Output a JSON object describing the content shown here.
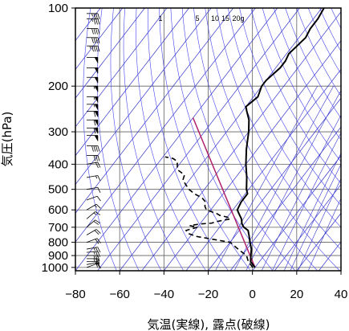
{
  "chart_data": {
    "type": "skew-t sounding",
    "xlabel": "気温(実線), 露点(破線)",
    "ylabel": "気圧(hPa)",
    "xlim": [
      -80,
      40
    ],
    "ylim": [
      1030,
      100
    ],
    "y_scale": "log",
    "x_ticks": [
      -80,
      -60,
      -40,
      -20,
      0,
      20,
      40
    ],
    "y_ticks": [
      100,
      200,
      300,
      400,
      500,
      600,
      700,
      800,
      900,
      1000
    ],
    "mixing_ratio_labels": [
      "1",
      "5",
      "10",
      "15",
      "20g"
    ],
    "grid": true,
    "temperature": [
      {
        "p": 1000,
        "t": 0
      },
      {
        "p": 975,
        "t": -2
      },
      {
        "p": 950,
        "t": -4
      },
      {
        "p": 925,
        "t": -5
      },
      {
        "p": 900,
        "t": -6
      },
      {
        "p": 875,
        "t": -7
      },
      {
        "p": 850,
        "t": -8
      },
      {
        "p": 800,
        "t": -11
      },
      {
        "p": 750,
        "t": -14
      },
      {
        "p": 720,
        "t": -16
      },
      {
        "p": 700,
        "t": -19
      },
      {
        "p": 680,
        "t": -21
      },
      {
        "p": 650,
        "t": -23
      },
      {
        "p": 620,
        "t": -26
      },
      {
        "p": 600,
        "t": -28
      },
      {
        "p": 560,
        "t": -29
      },
      {
        "p": 520,
        "t": -29
      },
      {
        "p": 500,
        "t": -31
      },
      {
        "p": 450,
        "t": -35
      },
      {
        "p": 400,
        "t": -40
      },
      {
        "p": 350,
        "t": -45
      },
      {
        "p": 300,
        "t": -50
      },
      {
        "p": 270,
        "t": -54
      },
      {
        "p": 250,
        "t": -58
      },
      {
        "p": 240,
        "t": -60
      },
      {
        "p": 220,
        "t": -58
      },
      {
        "p": 200,
        "t": -60
      },
      {
        "p": 190,
        "t": -60
      },
      {
        "p": 180,
        "t": -59
      },
      {
        "p": 170,
        "t": -58
      },
      {
        "p": 160,
        "t": -58
      },
      {
        "p": 150,
        "t": -59
      },
      {
        "p": 140,
        "t": -58
      },
      {
        "p": 130,
        "t": -57
      },
      {
        "p": 120,
        "t": -58
      },
      {
        "p": 110,
        "t": -58
      },
      {
        "p": 100,
        "t": -59
      }
    ],
    "dewpoint": [
      {
        "p": 1000,
        "t": -1
      },
      {
        "p": 950,
        "t": -5
      },
      {
        "p": 900,
        "t": -8
      },
      {
        "p": 850,
        "t": -14
      },
      {
        "p": 800,
        "t": -20
      },
      {
        "p": 760,
        "t": -37
      },
      {
        "p": 740,
        "t": -42
      },
      {
        "p": 720,
        "t": -44
      },
      {
        "p": 700,
        "t": -40
      },
      {
        "p": 690,
        "t": -44
      },
      {
        "p": 680,
        "t": -40
      },
      {
        "p": 675,
        "t": -35
      },
      {
        "p": 665,
        "t": -33
      },
      {
        "p": 650,
        "t": -28
      },
      {
        "p": 640,
        "t": -30
      },
      {
        "p": 630,
        "t": -34
      },
      {
        "p": 620,
        "t": -36
      },
      {
        "p": 600,
        "t": -42
      },
      {
        "p": 580,
        "t": -44
      },
      {
        "p": 560,
        "t": -45
      },
      {
        "p": 540,
        "t": -48
      },
      {
        "p": 520,
        "t": -53
      },
      {
        "p": 500,
        "t": -57
      },
      {
        "p": 480,
        "t": -60
      },
      {
        "p": 460,
        "t": -63
      },
      {
        "p": 440,
        "t": -64
      },
      {
        "p": 420,
        "t": -69
      },
      {
        "p": 400,
        "t": -71
      },
      {
        "p": 390,
        "t": -72
      },
      {
        "p": 380,
        "t": -75
      },
      {
        "p": 375,
        "t": -79
      }
    ],
    "parcel": [
      {
        "p": 1000,
        "t": 0
      },
      {
        "p": 265,
        "t": -80
      }
    ],
    "wind_barbs": [
      {
        "p": 1000,
        "dir": 250,
        "spd": 10
      },
      {
        "p": 975,
        "dir": 260,
        "spd": 15
      },
      {
        "p": 950,
        "dir": 270,
        "spd": 20
      },
      {
        "p": 925,
        "dir": 270,
        "spd": 25
      },
      {
        "p": 900,
        "dir": 270,
        "spd": 25
      },
      {
        "p": 875,
        "dir": 265,
        "spd": 25
      },
      {
        "p": 850,
        "dir": 260,
        "spd": 25
      },
      {
        "p": 800,
        "dir": 250,
        "spd": 20
      },
      {
        "p": 750,
        "dir": 240,
        "spd": 20
      },
      {
        "p": 700,
        "dir": 230,
        "spd": 20
      },
      {
        "p": 650,
        "dir": 230,
        "spd": 15
      },
      {
        "p": 600,
        "dir": 240,
        "spd": 15
      },
      {
        "p": 550,
        "dir": 250,
        "spd": 10
      },
      {
        "p": 500,
        "dir": 260,
        "spd": 10
      },
      {
        "p": 450,
        "dir": 260,
        "spd": 15
      },
      {
        "p": 400,
        "dir": 260,
        "spd": 20
      },
      {
        "p": 370,
        "dir": 270,
        "spd": 30
      },
      {
        "p": 340,
        "dir": 270,
        "spd": 40
      },
      {
        "p": 310,
        "dir": 270,
        "spd": 50
      },
      {
        "p": 290,
        "dir": 270,
        "spd": 60
      },
      {
        "p": 270,
        "dir": 270,
        "spd": 60
      },
      {
        "p": 250,
        "dir": 270,
        "spd": 60
      },
      {
        "p": 235,
        "dir": 270,
        "spd": 55
      },
      {
        "p": 220,
        "dir": 270,
        "spd": 55
      },
      {
        "p": 200,
        "dir": 270,
        "spd": 55
      },
      {
        "p": 185,
        "dir": 270,
        "spd": 50
      },
      {
        "p": 170,
        "dir": 270,
        "spd": 50
      },
      {
        "p": 155,
        "dir": 270,
        "spd": 50
      },
      {
        "p": 140,
        "dir": 270,
        "spd": 45
      },
      {
        "p": 130,
        "dir": 270,
        "spd": 40
      },
      {
        "p": 120,
        "dir": 270,
        "spd": 40
      },
      {
        "p": 110,
        "dir": 270,
        "spd": 35
      },
      {
        "p": 105,
        "dir": 270,
        "spd": 35
      }
    ],
    "colors": {
      "frame": "#000000",
      "grid": "#606060",
      "isotherm": "#3333cc",
      "dry_adiabat": "#4444ee",
      "mixing_ratio": "#3333cc",
      "temperature": "#000000",
      "dewpoint": "#000000",
      "parcel": "#b0206a",
      "barb": "#000000"
    }
  }
}
